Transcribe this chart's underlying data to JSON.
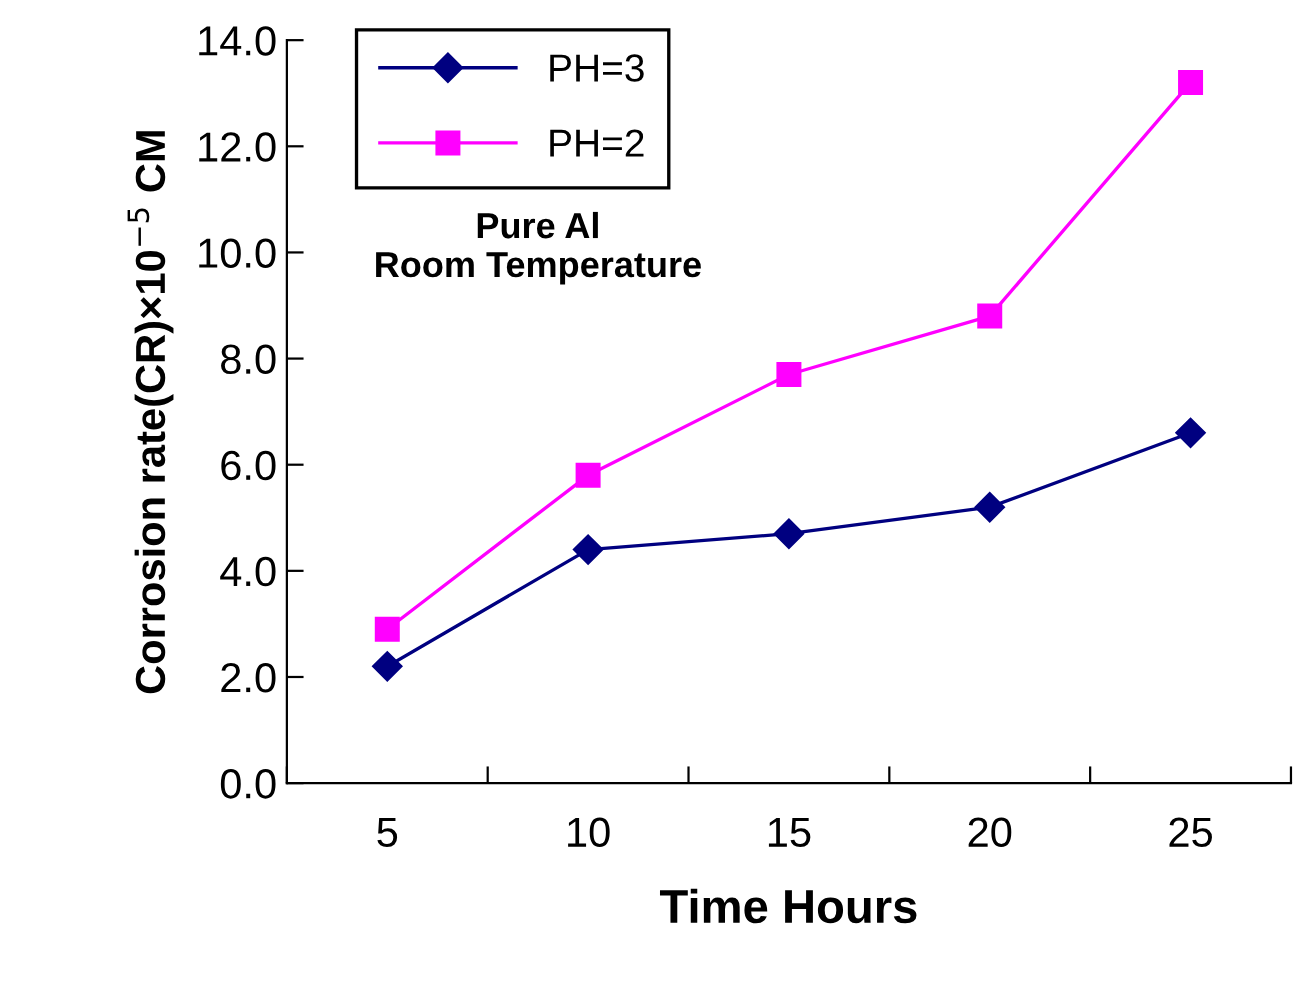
{
  "chart_data": {
    "type": "line",
    "xlabel": "Time Hours",
    "ylabel": "Corrosion rate(CR)×10$^{−5}$ CM",
    "categories": [
      "5",
      "10",
      "15",
      "20",
      "25"
    ],
    "series": [
      {
        "name": "PH=3",
        "color": "#000080",
        "values": [
          2.2,
          4.4,
          4.7,
          5.2,
          6.6
        ],
        "marker": "diamond"
      },
      {
        "name": "PH=2",
        "color": "#ff00ff",
        "values": [
          2.9,
          5.8,
          7.7,
          8.8,
          13.2
        ],
        "marker": "square"
      }
    ],
    "ylim": [
      0,
      14
    ],
    "yticks": [
      {
        "value": 0,
        "label": "0.0"
      },
      {
        "value": 2,
        "label": "2.0"
      },
      {
        "value": 4,
        "label": "4.0"
      },
      {
        "value": 6,
        "label": "6.0"
      },
      {
        "value": 8,
        "label": "8.0"
      },
      {
        "value": 10,
        "label": "10.0"
      },
      {
        "value": 12,
        "label": "12.0"
      },
      {
        "value": 14,
        "label": "14.0"
      }
    ],
    "annotations": [
      "Pure Al\nRoom Temperature"
    ],
    "legend": "top left",
    "grid": false,
    "line_style": "solid"
  }
}
